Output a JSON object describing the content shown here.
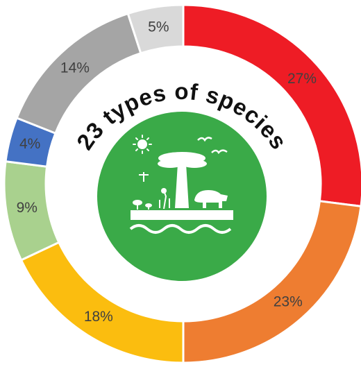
{
  "chart_data": {
    "type": "donut",
    "title": "23 types of species",
    "values": [
      27,
      23,
      18,
      9,
      4,
      14,
      5
    ],
    "value_labels": [
      "27%",
      "23%",
      "18%",
      "9%",
      "4%",
      "14%",
      "5%"
    ],
    "colors": [
      "#ee1c25",
      "#ee7d31",
      "#fbbd0f",
      "#a9d18e",
      "#4472c4",
      "#a5a5a5",
      "#d9d9d9"
    ]
  }
}
